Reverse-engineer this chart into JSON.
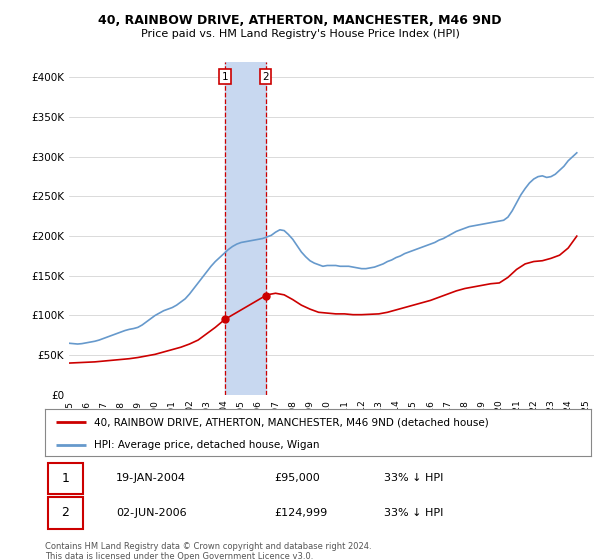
{
  "title": "40, RAINBOW DRIVE, ATHERTON, MANCHESTER, M46 9ND",
  "subtitle": "Price paid vs. HM Land Registry's House Price Index (HPI)",
  "ylim": [
    0,
    420000
  ],
  "yticks": [
    0,
    50000,
    100000,
    150000,
    200000,
    250000,
    300000,
    350000,
    400000
  ],
  "xlim_start": 1995.0,
  "xlim_end": 2025.5,
  "sale1_x": 2004.05,
  "sale1_y": 95000,
  "sale2_x": 2006.42,
  "sale2_y": 124999,
  "sale1_label": "19-JAN-2004",
  "sale1_price": "£95,000",
  "sale1_hpi": "33% ↓ HPI",
  "sale2_label": "02-JUN-2006",
  "sale2_price": "£124,999",
  "sale2_hpi": "33% ↓ HPI",
  "line1_color": "#cc0000",
  "line2_color": "#6699cc",
  "shade_color": "#c8d8f0",
  "vline_color": "#cc0000",
  "legend_label1": "40, RAINBOW DRIVE, ATHERTON, MANCHESTER, M46 9ND (detached house)",
  "legend_label2": "HPI: Average price, detached house, Wigan",
  "footer": "Contains HM Land Registry data © Crown copyright and database right 2024.\nThis data is licensed under the Open Government Licence v3.0.",
  "hpi_data_x": [
    1995.0,
    1995.25,
    1995.5,
    1995.75,
    1996.0,
    1996.25,
    1996.5,
    1996.75,
    1997.0,
    1997.25,
    1997.5,
    1997.75,
    1998.0,
    1998.25,
    1998.5,
    1998.75,
    1999.0,
    1999.25,
    1999.5,
    1999.75,
    2000.0,
    2000.25,
    2000.5,
    2000.75,
    2001.0,
    2001.25,
    2001.5,
    2001.75,
    2002.0,
    2002.25,
    2002.5,
    2002.75,
    2003.0,
    2003.25,
    2003.5,
    2003.75,
    2004.0,
    2004.25,
    2004.5,
    2004.75,
    2005.0,
    2005.25,
    2005.5,
    2005.75,
    2006.0,
    2006.25,
    2006.5,
    2006.75,
    2007.0,
    2007.25,
    2007.5,
    2007.75,
    2008.0,
    2008.25,
    2008.5,
    2008.75,
    2009.0,
    2009.25,
    2009.5,
    2009.75,
    2010.0,
    2010.25,
    2010.5,
    2010.75,
    2011.0,
    2011.25,
    2011.5,
    2011.75,
    2012.0,
    2012.25,
    2012.5,
    2012.75,
    2013.0,
    2013.25,
    2013.5,
    2013.75,
    2014.0,
    2014.25,
    2014.5,
    2014.75,
    2015.0,
    2015.25,
    2015.5,
    2015.75,
    2016.0,
    2016.25,
    2016.5,
    2016.75,
    2017.0,
    2017.25,
    2017.5,
    2017.75,
    2018.0,
    2018.25,
    2018.5,
    2018.75,
    2019.0,
    2019.25,
    2019.5,
    2019.75,
    2020.0,
    2020.25,
    2020.5,
    2020.75,
    2021.0,
    2021.25,
    2021.5,
    2021.75,
    2022.0,
    2022.25,
    2022.5,
    2022.75,
    2023.0,
    2023.25,
    2023.5,
    2023.75,
    2024.0,
    2024.25,
    2024.5
  ],
  "hpi_data_y": [
    65000,
    64500,
    64000,
    64500,
    65500,
    66500,
    67500,
    69000,
    71000,
    73000,
    75000,
    77000,
    79000,
    81000,
    82500,
    83500,
    85000,
    88000,
    92000,
    96000,
    100000,
    103000,
    106000,
    108000,
    110000,
    113000,
    117000,
    121000,
    127000,
    134000,
    141000,
    148000,
    155000,
    162000,
    168000,
    173000,
    178000,
    183000,
    187000,
    190000,
    192000,
    193000,
    194000,
    195000,
    196000,
    197000,
    199000,
    201000,
    205000,
    208000,
    207000,
    202000,
    196000,
    188000,
    180000,
    174000,
    169000,
    166000,
    164000,
    162000,
    163000,
    163000,
    163000,
    162000,
    162000,
    162000,
    161000,
    160000,
    159000,
    159000,
    160000,
    161000,
    163000,
    165000,
    168000,
    170000,
    173000,
    175000,
    178000,
    180000,
    182000,
    184000,
    186000,
    188000,
    190000,
    192000,
    195000,
    197000,
    200000,
    203000,
    206000,
    208000,
    210000,
    212000,
    213000,
    214000,
    215000,
    216000,
    217000,
    218000,
    219000,
    220000,
    224000,
    232000,
    242000,
    252000,
    260000,
    267000,
    272000,
    275000,
    276000,
    274000,
    275000,
    278000,
    283000,
    288000,
    295000,
    300000,
    305000
  ],
  "prop_data_x": [
    1995.0,
    1995.5,
    1996.0,
    1996.5,
    1997.0,
    1997.5,
    1998.0,
    1998.5,
    1999.0,
    1999.5,
    2000.0,
    2000.5,
    2001.0,
    2001.5,
    2002.0,
    2002.5,
    2003.0,
    2003.5,
    2004.05,
    2006.42,
    2006.5,
    2007.0,
    2007.5,
    2008.0,
    2008.5,
    2009.0,
    2009.5,
    2010.0,
    2010.5,
    2011.0,
    2011.5,
    2012.0,
    2012.5,
    2013.0,
    2013.5,
    2014.0,
    2014.5,
    2015.0,
    2015.5,
    2016.0,
    2016.5,
    2017.0,
    2017.5,
    2018.0,
    2018.5,
    2019.0,
    2019.5,
    2020.0,
    2020.5,
    2021.0,
    2021.5,
    2022.0,
    2022.5,
    2023.0,
    2023.5,
    2024.0,
    2024.5
  ],
  "prop_data_y": [
    40000,
    40500,
    41000,
    41500,
    42500,
    43500,
    44500,
    45500,
    47000,
    49000,
    51000,
    54000,
    57000,
    60000,
    64000,
    69000,
    77000,
    85000,
    95000,
    124999,
    126000,
    128000,
    126000,
    120000,
    113000,
    108000,
    104000,
    103000,
    102000,
    102000,
    101000,
    101000,
    101500,
    102000,
    104000,
    107000,
    110000,
    113000,
    116000,
    119000,
    123000,
    127000,
    131000,
    134000,
    136000,
    138000,
    140000,
    141000,
    148000,
    158000,
    165000,
    168000,
    169000,
    172000,
    176000,
    185000,
    200000
  ]
}
